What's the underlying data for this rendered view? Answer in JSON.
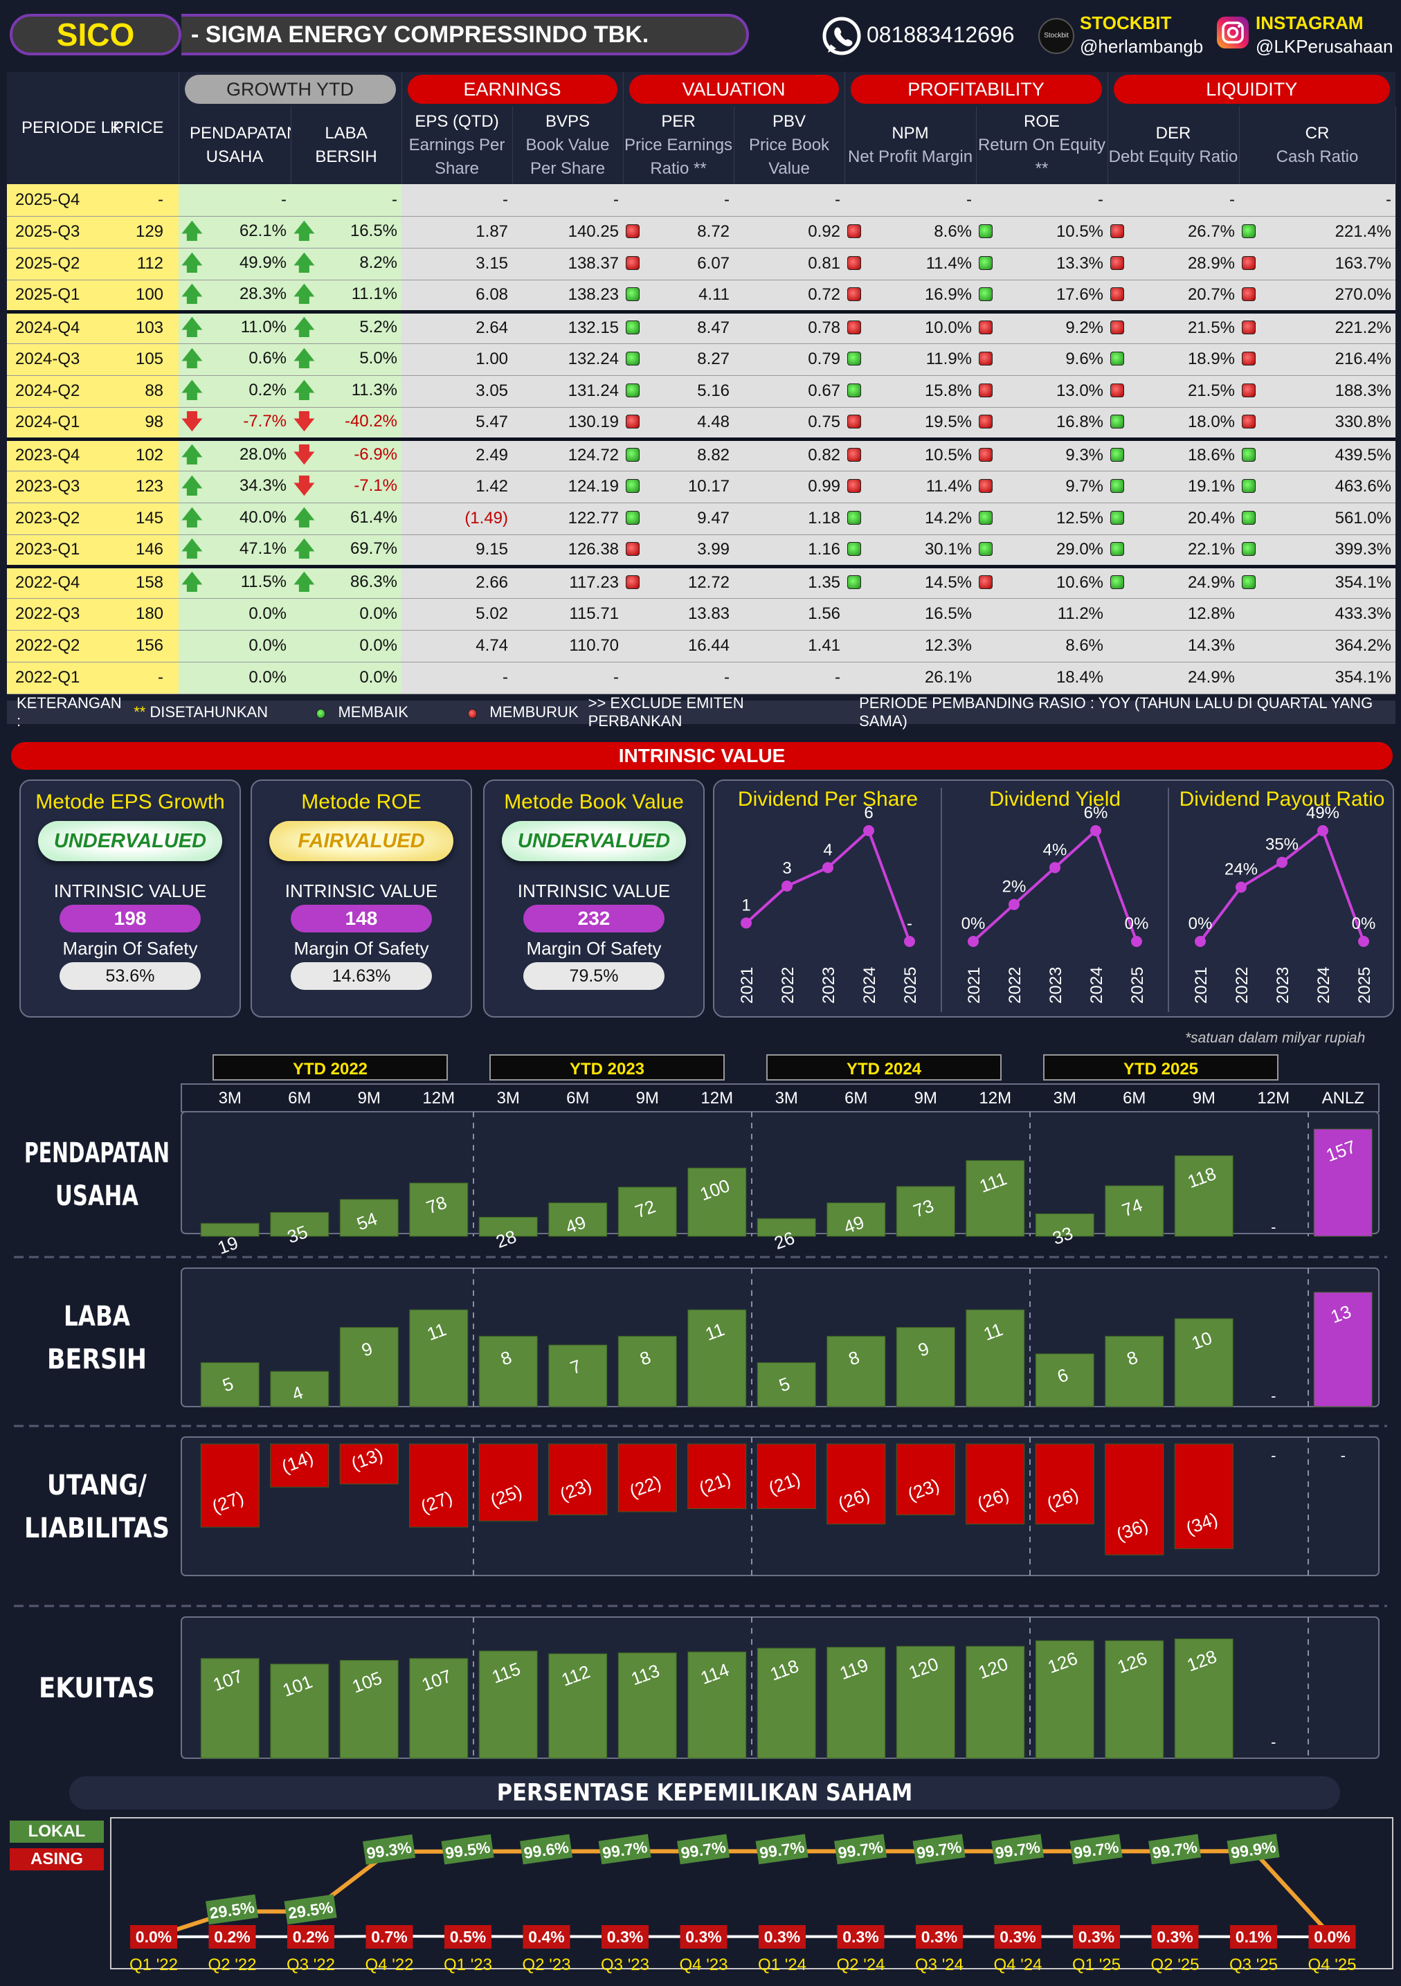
{
  "header": {
    "ticker": "SICO",
    "company": "-  SIGMA ENERGY COMPRESSINDO TBK.",
    "whatsapp": "081883412696",
    "stockbit_label": "STOCKBIT",
    "stockbit_handle": "@herlambangb",
    "stockbit_logo_text": "Stockbit",
    "instagram_label": "INSTAGRAM",
    "instagram_handle": "@LKPerusahaan"
  },
  "table": {
    "groups": {
      "growth": "GROWTH YTD",
      "earnings": "EARNINGS",
      "valuation": "VALUATION",
      "profitability": "PROFITABILITY",
      "liquidity": "LIQUIDITY"
    },
    "headers": {
      "periode": "PERIODE LK",
      "price": "PRICE",
      "pend": "PENDAPATAN USAHA",
      "laba": "LABA BERSIH",
      "eps": "EPS (QTD)",
      "eps_sub": "Earnings Per Share",
      "bvps": "BVPS",
      "bvps_sub": "Book Value Per Share",
      "per": "PER",
      "per_sub": "Price Earnings Ratio **",
      "pbv": "PBV",
      "pbv_sub": "Price Book Value",
      "npm": "NPM",
      "npm_sub": "Net Profit Margin",
      "roe": "ROE",
      "roe_sub": "Return On Equity **",
      "der": "DER",
      "der_sub": "Debt Equity Ratio",
      "cr": "CR",
      "cr_sub": "Cash Ratio"
    },
    "rows": [
      {
        "p": "2025-Q4",
        "price": "-",
        "pa": "",
        "pend": "-",
        "la": "",
        "laba": "-",
        "eps": "-",
        "bvps": "-",
        "pd": "",
        "per": "-",
        "pbv": "-",
        "nd": "",
        "npm": "-",
        "rd": "",
        "roe": "-",
        "dd": "",
        "der": "-",
        "cd": "",
        "cr": "-"
      },
      {
        "p": "2025-Q3",
        "price": "129",
        "pa": "up",
        "pend": "62.1%",
        "la": "up",
        "laba": "16.5%",
        "eps": "1.87",
        "bvps": "140.25",
        "pd": "r",
        "per": "8.72",
        "pbv": "0.92",
        "nd": "r",
        "npm": "8.6%",
        "rd": "g",
        "roe": "10.5%",
        "dd": "r",
        "der": "26.7%",
        "cd": "g",
        "cr": "221.4%"
      },
      {
        "p": "2025-Q2",
        "price": "112",
        "pa": "up",
        "pend": "49.9%",
        "la": "up",
        "laba": "8.2%",
        "eps": "3.15",
        "bvps": "138.37",
        "pd": "r",
        "per": "6.07",
        "pbv": "0.81",
        "nd": "r",
        "npm": "11.4%",
        "rd": "g",
        "roe": "13.3%",
        "dd": "r",
        "der": "28.9%",
        "cd": "r",
        "cr": "163.7%"
      },
      {
        "p": "2025-Q1",
        "price": "100",
        "pa": "up",
        "pend": "28.3%",
        "la": "up",
        "laba": "11.1%",
        "eps": "6.08",
        "bvps": "138.23",
        "pd": "g",
        "per": "4.11",
        "pbv": "0.72",
        "nd": "r",
        "npm": "16.9%",
        "rd": "g",
        "roe": "17.6%",
        "dd": "r",
        "der": "20.7%",
        "cd": "r",
        "cr": "270.0%"
      },
      {
        "p": "2024-Q4",
        "price": "103",
        "pa": "up",
        "pend": "11.0%",
        "la": "up",
        "laba": "5.2%",
        "eps": "2.64",
        "bvps": "132.15",
        "pd": "g",
        "per": "8.47",
        "pbv": "0.78",
        "nd": "r",
        "npm": "10.0%",
        "rd": "r",
        "roe": "9.2%",
        "dd": "r",
        "der": "21.5%",
        "cd": "r",
        "cr": "221.2%",
        "sep": true
      },
      {
        "p": "2024-Q3",
        "price": "105",
        "pa": "up",
        "pend": "0.6%",
        "la": "up",
        "laba": "5.0%",
        "eps": "1.00",
        "bvps": "132.24",
        "pd": "g",
        "per": "8.27",
        "pbv": "0.79",
        "nd": "g",
        "npm": "11.9%",
        "rd": "r",
        "roe": "9.6%",
        "dd": "g",
        "der": "18.9%",
        "cd": "r",
        "cr": "216.4%"
      },
      {
        "p": "2024-Q2",
        "price": "88",
        "pa": "up",
        "pend": "0.2%",
        "la": "up",
        "laba": "11.3%",
        "eps": "3.05",
        "bvps": "131.24",
        "pd": "g",
        "per": "5.16",
        "pbv": "0.67",
        "nd": "g",
        "npm": "15.8%",
        "rd": "r",
        "roe": "13.0%",
        "dd": "r",
        "der": "21.5%",
        "cd": "r",
        "cr": "188.3%"
      },
      {
        "p": "2024-Q1",
        "price": "98",
        "pa": "down",
        "pend": "-7.7%",
        "la": "down",
        "laba": "-40.2%",
        "eps": "5.47",
        "bvps": "130.19",
        "pd": "r",
        "per": "4.48",
        "pbv": "0.75",
        "nd": "r",
        "npm": "19.5%",
        "rd": "r",
        "roe": "16.8%",
        "dd": "g",
        "der": "18.0%",
        "cd": "r",
        "cr": "330.8%",
        "negp": true,
        "negl": true
      },
      {
        "p": "2023-Q4",
        "price": "102",
        "pa": "up",
        "pend": "28.0%",
        "la": "down",
        "laba": "-6.9%",
        "eps": "2.49",
        "bvps": "124.72",
        "pd": "g",
        "per": "8.82",
        "pbv": "0.82",
        "nd": "r",
        "npm": "10.5%",
        "rd": "r",
        "roe": "9.3%",
        "dd": "g",
        "der": "18.6%",
        "cd": "g",
        "cr": "439.5%",
        "negl": true,
        "sep": true
      },
      {
        "p": "2023-Q3",
        "price": "123",
        "pa": "up",
        "pend": "34.3%",
        "la": "down",
        "laba": "-7.1%",
        "eps": "1.42",
        "bvps": "124.19",
        "pd": "g",
        "per": "10.17",
        "pbv": "0.99",
        "nd": "r",
        "npm": "11.4%",
        "rd": "r",
        "roe": "9.7%",
        "dd": "g",
        "der": "19.1%",
        "cd": "g",
        "cr": "463.6%",
        "negl": true
      },
      {
        "p": "2023-Q2",
        "price": "145",
        "pa": "up",
        "pend": "40.0%",
        "la": "up",
        "laba": "61.4%",
        "eps": "(1.49)",
        "bvps": "122.77",
        "pd": "g",
        "per": "9.47",
        "pbv": "1.18",
        "nd": "g",
        "npm": "14.2%",
        "rd": "g",
        "roe": "12.5%",
        "dd": "g",
        "der": "20.4%",
        "cd": "g",
        "cr": "561.0%",
        "nege": true
      },
      {
        "p": "2023-Q1",
        "price": "146",
        "pa": "up",
        "pend": "47.1%",
        "la": "up",
        "laba": "69.7%",
        "eps": "9.15",
        "bvps": "126.38",
        "pd": "r",
        "per": "3.99",
        "pbv": "1.16",
        "nd": "g",
        "npm": "30.1%",
        "rd": "g",
        "roe": "29.0%",
        "dd": "g",
        "der": "22.1%",
        "cd": "g",
        "cr": "399.3%"
      },
      {
        "p": "2022-Q4",
        "price": "158",
        "pa": "up",
        "pend": "11.5%",
        "la": "up",
        "laba": "86.3%",
        "eps": "2.66",
        "bvps": "117.23",
        "pd": "r",
        "per": "12.72",
        "pbv": "1.35",
        "nd": "g",
        "npm": "14.5%",
        "rd": "r",
        "roe": "10.6%",
        "dd": "g",
        "der": "24.9%",
        "cd": "g",
        "cr": "354.1%",
        "sep": true
      },
      {
        "p": "2022-Q3",
        "price": "180",
        "pa": "",
        "pend": "0.0%",
        "la": "",
        "laba": "0.0%",
        "eps": "5.02",
        "bvps": "115.71",
        "pd": "",
        "per": "13.83",
        "pbv": "1.56",
        "nd": "",
        "npm": "16.5%",
        "rd": "",
        "roe": "11.2%",
        "dd": "",
        "der": "12.8%",
        "cd": "",
        "cr": "433.3%"
      },
      {
        "p": "2022-Q2",
        "price": "156",
        "pa": "",
        "pend": "0.0%",
        "la": "",
        "laba": "0.0%",
        "eps": "4.74",
        "bvps": "110.70",
        "pd": "",
        "per": "16.44",
        "pbv": "1.41",
        "nd": "",
        "npm": "12.3%",
        "rd": "",
        "roe": "8.6%",
        "dd": "",
        "der": "14.3%",
        "cd": "",
        "cr": "364.2%"
      },
      {
        "p": "2022-Q1",
        "price": "-",
        "pa": "",
        "pend": "0.0%",
        "la": "",
        "laba": "0.0%",
        "eps": "-",
        "bvps": "-",
        "pd": "",
        "per": "-",
        "pbv": "-",
        "nd": "",
        "npm": "26.1%",
        "rd": "",
        "roe": "18.4%",
        "dd": "",
        "der": "24.9%",
        "cd": "",
        "cr": "354.1%"
      }
    ]
  },
  "legend": {
    "ket": "KETERANGAN :",
    "stars": "**",
    "ket_text": "DISETAHUNKAN",
    "membaik": "MEMBAIK",
    "memburuk": "MEMBURUK",
    "exclude": ">> EXCLUDE EMITEN PERBANKAN",
    "periode": "PERIODE PEMBANDING RASIO : YOY (TAHUN LALU DI QUARTAL YANG SAMA)"
  },
  "intrinsic": {
    "title": "INTRINSIC VALUE",
    "iv_label": "INTRINSIC VALUE",
    "mos_label": "Margin Of Safety",
    "cards": [
      {
        "title": "Metode EPS Growth",
        "verdict": "UNDERVALUED",
        "value": "198",
        "mos": "53.6%"
      },
      {
        "title": "Metode ROE",
        "verdict": "FAIRVALUED",
        "value": "148",
        "mos": "14.63%"
      },
      {
        "title": "Metode Book Value",
        "verdict": "UNDERVALUED",
        "value": "232",
        "mos": "79.5%"
      }
    ]
  },
  "colors": {
    "green_bar": "#5a8a3a",
    "red_bar": "#cc0000",
    "purple": "#b43cc8",
    "yellow": "#ffe600"
  },
  "chart_data": [
    {
      "type": "line",
      "title": "Dividend Per Share",
      "x": [
        "2021",
        "2022",
        "2023",
        "2024",
        "2025"
      ],
      "values": [
        1,
        3,
        4,
        6,
        null
      ],
      "labels": [
        "1",
        "3",
        "4",
        "6",
        "-"
      ]
    },
    {
      "type": "line",
      "title": "Dividend Yield",
      "x": [
        "2021",
        "2022",
        "2023",
        "2024",
        "2025"
      ],
      "values": [
        0,
        2,
        4,
        6,
        0
      ],
      "labels": [
        "0%",
        "2%",
        "4%",
        "6%",
        "0%"
      ]
    },
    {
      "type": "line",
      "title": "Dividend Payout Ratio",
      "x": [
        "2021",
        "2022",
        "2023",
        "2024",
        "2025"
      ],
      "values": [
        0,
        24,
        35,
        49,
        0
      ],
      "labels": [
        "0%",
        "24%",
        "35%",
        "49%",
        "0%"
      ]
    },
    {
      "type": "bar",
      "note": "*satuan dalam milyar rupiah",
      "groups": [
        "YTD 2022",
        "YTD 2023",
        "YTD 2024",
        "YTD 2025"
      ],
      "categories": [
        "3M",
        "6M",
        "9M",
        "12M",
        "3M",
        "6M",
        "9M",
        "12M",
        "3M",
        "6M",
        "9M",
        "12M",
        "3M",
        "6M",
        "9M",
        "12M",
        "ANLZ"
      ],
      "series": [
        {
          "name": "PENDAPATAN USAHA",
          "values": [
            19,
            35,
            54,
            78,
            28,
            49,
            72,
            100,
            26,
            49,
            73,
            111,
            33,
            74,
            118,
            null,
            157
          ],
          "labels": [
            "19",
            "35",
            "54",
            "78",
            "28",
            "49",
            "72",
            "100",
            "26",
            "49",
            "73",
            "111",
            "33",
            "74",
            "118",
            "-",
            "157"
          ]
        },
        {
          "name": "LABA BERSIH",
          "values": [
            5,
            4,
            9,
            11,
            8,
            7,
            8,
            11,
            5,
            8,
            9,
            11,
            6,
            8,
            10,
            null,
            13
          ],
          "labels": [
            "5",
            "4",
            "9",
            "11",
            "8",
            "7",
            "8",
            "11",
            "5",
            "8",
            "9",
            "11",
            "6",
            "8",
            "10",
            "-",
            "13"
          ]
        },
        {
          "name": "UTANG/ LIABILITAS",
          "values": [
            -27,
            -14,
            -13,
            -27,
            -25,
            -23,
            -22,
            -21,
            -21,
            -26,
            -23,
            -26,
            -26,
            -36,
            -34,
            null,
            null
          ],
          "labels": [
            "(27)",
            "(14)",
            "(13)",
            "(27)",
            "(25)",
            "(23)",
            "(22)",
            "(21)",
            "(21)",
            "(26)",
            "(23)",
            "(26)",
            "(26)",
            "(36)",
            "(34)",
            "-",
            "-"
          ]
        },
        {
          "name": "EKUITAS",
          "values": [
            107,
            101,
            105,
            107,
            115,
            112,
            113,
            114,
            118,
            119,
            120,
            120,
            126,
            126,
            128,
            null,
            null
          ],
          "labels": [
            "107",
            "101",
            "105",
            "107",
            "115",
            "112",
            "113",
            "114",
            "118",
            "119",
            "120",
            "120",
            "126",
            "126",
            "128",
            "-",
            ""
          ]
        }
      ]
    },
    {
      "type": "line",
      "title": "PERSENTASE KEPEMILIKAN SAHAM",
      "x": [
        "Q1 '22",
        "Q2 '22",
        "Q3 '22",
        "Q4 '22",
        "Q1 '23",
        "Q2 '23",
        "Q3 '23",
        "Q4 '23",
        "Q1 '24",
        "Q2 '24",
        "Q3 '24",
        "Q4 '24",
        "Q1 '25",
        "Q2 '25",
        "Q3 '25",
        "Q4 '25"
      ],
      "series": [
        {
          "name": "LOKAL",
          "values": [
            0.0,
            29.5,
            29.5,
            99.3,
            99.5,
            99.6,
            99.7,
            99.7,
            99.7,
            99.7,
            99.7,
            99.7,
            99.7,
            99.7,
            99.9,
            0.0
          ],
          "labels": [
            "",
            "29.5%",
            "29.5%",
            "99.3%",
            "99.5%",
            "99.6%",
            "99.7%",
            "99.7%",
            "99.7%",
            "99.7%",
            "99.7%",
            "99.7%",
            "99.7%",
            "99.7%",
            "99.9%",
            ""
          ]
        },
        {
          "name": "ASING",
          "values": [
            0.0,
            0.2,
            0.2,
            0.7,
            0.5,
            0.4,
            0.3,
            0.3,
            0.3,
            0.3,
            0.3,
            0.3,
            0.3,
            0.3,
            0.1,
            0.0
          ],
          "labels": [
            "0.0%",
            "0.2%",
            "0.2%",
            "0.7%",
            "0.5%",
            "0.4%",
            "0.3%",
            "0.3%",
            "0.3%",
            "0.3%",
            "0.3%",
            "0.3%",
            "0.3%",
            "0.3%",
            "0.1%",
            "0.0%"
          ]
        }
      ]
    }
  ]
}
